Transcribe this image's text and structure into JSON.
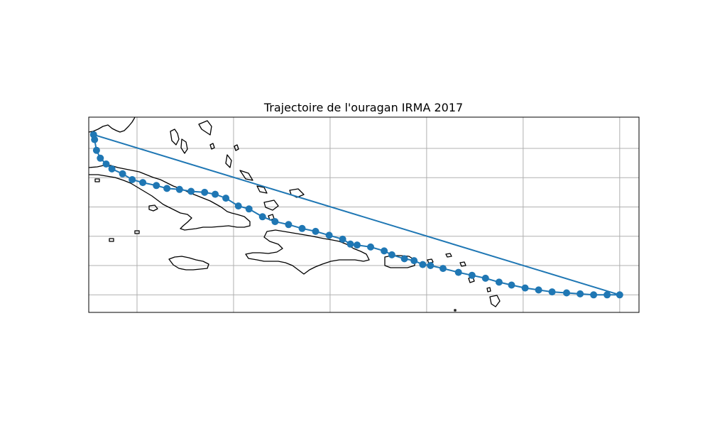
{
  "chart_data": {
    "type": "line",
    "title": "Trajectoire de l'ouragan IRMA 2017",
    "xlabel": "",
    "ylabel": "",
    "grid": true,
    "series_color": "#1f77b4",
    "xlim": [
      -82.0,
      -25.0
    ],
    "ylim": [
      15.0,
      35.0
    ],
    "grid_lon": [
      -77,
      -67,
      -57,
      -47,
      -37,
      -27
    ],
    "grid_lat": [
      16.8,
      19.8,
      22.8,
      25.8,
      28.8,
      31.8
    ],
    "track": {
      "lon": [
        -27.0,
        -28.3,
        -29.7,
        -31.1,
        -32.5,
        -34.0,
        -35.4,
        -36.8,
        -38.2,
        -39.5,
        -40.9,
        -42.3,
        -43.7,
        -45.3,
        -46.6,
        -47.4,
        -48.3,
        -49.3,
        -50.6,
        -51.4,
        -52.8,
        -54.2,
        -54.9,
        -55.7,
        -57.1,
        -58.5,
        -59.9,
        -61.3,
        -62.7,
        -64.0,
        -65.4,
        -66.5,
        -67.8,
        -68.9,
        -70.0,
        -71.4,
        -72.6,
        -73.9,
        -75.0,
        -76.4,
        -77.5,
        -78.5,
        -79.6,
        -80.2,
        -80.8,
        -81.2,
        -81.4,
        -81.5
      ],
      "lat": [
        16.8,
        16.8,
        16.8,
        16.9,
        17.0,
        17.1,
        17.3,
        17.5,
        17.8,
        18.1,
        18.5,
        18.8,
        19.1,
        19.5,
        19.8,
        19.9,
        20.3,
        20.5,
        20.9,
        21.3,
        21.7,
        21.9,
        22.0,
        22.5,
        22.9,
        23.3,
        23.6,
        24.0,
        24.3,
        24.8,
        25.6,
        25.9,
        26.7,
        27.1,
        27.3,
        27.4,
        27.6,
        27.7,
        28.0,
        28.3,
        28.6,
        29.2,
        29.7,
        30.2,
        30.8,
        31.6,
        32.7,
        33.2
      ]
    },
    "annotations": []
  }
}
